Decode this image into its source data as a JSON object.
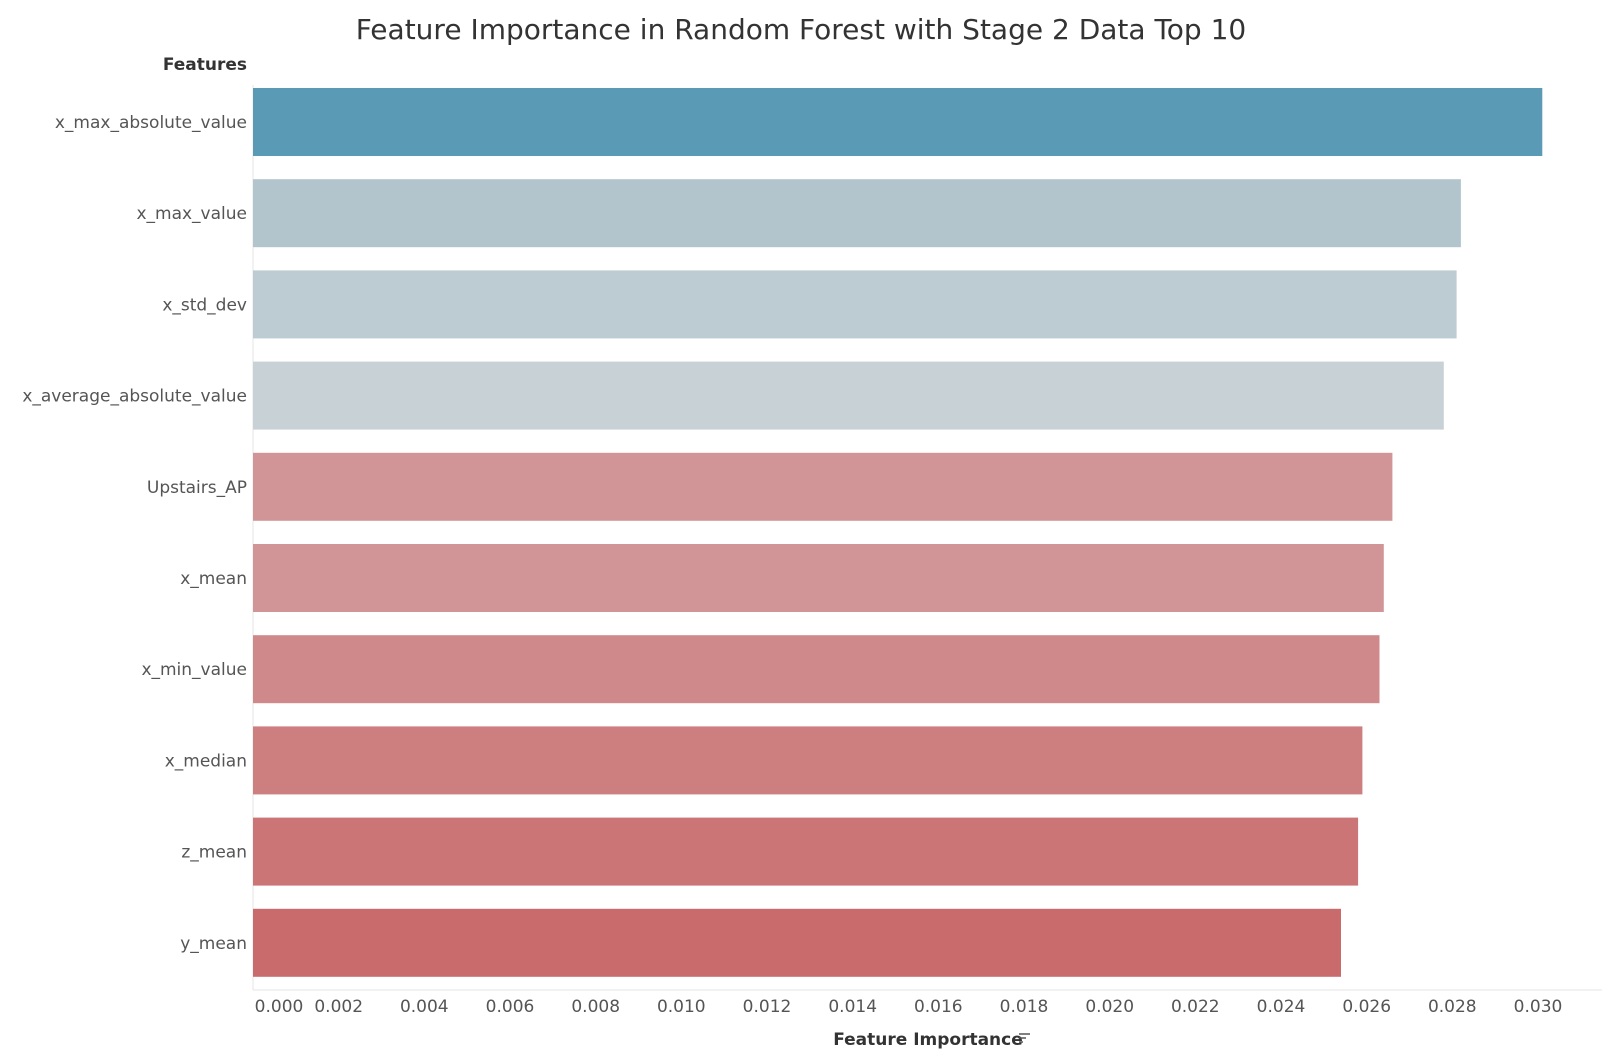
{
  "chart_data": {
    "type": "bar",
    "orientation": "horizontal",
    "title": "Feature Importance in Random Forest with Stage 2 Data Top 10",
    "row_header": "Features",
    "xlabel": "Feature Importance",
    "ylabel": "Features",
    "xlim": [
      0,
      0.0315
    ],
    "grid": false,
    "legend": "none",
    "categories": [
      "x_max_absolute_value",
      "x_max_value",
      "x_std_dev",
      "x_average_absolute_value",
      "Upstairs_AP",
      "x_mean",
      "x_min_value",
      "x_median",
      "z_mean",
      "y_mean"
    ],
    "values": [
      0.0301,
      0.0282,
      0.0281,
      0.0278,
      0.0266,
      0.0264,
      0.0263,
      0.0259,
      0.0258,
      0.0254
    ],
    "colors": [
      "#5b9ab5",
      "#b2c5cd",
      "#bdcbd2",
      "#c8d2d6",
      "#d29597",
      "#d29597",
      "#cf898b",
      "#cd7f80",
      "#cb7577",
      "#c96a6d"
    ],
    "ticks": [
      0,
      0.002,
      0.004,
      0.006,
      0.008,
      0.01,
      0.012,
      0.014,
      0.016,
      0.018,
      0.02,
      0.022,
      0.024,
      0.026,
      0.028,
      0.03
    ],
    "tick_labels": [
      "0.000",
      "0.002",
      "0.004",
      "0.006",
      "0.008",
      "0.010",
      "0.012",
      "0.014",
      "0.016",
      "0.018",
      "0.020",
      "0.022",
      "0.024",
      "0.026",
      "0.028",
      "0.030"
    ],
    "sort_icon": "sort-descending-icon"
  }
}
